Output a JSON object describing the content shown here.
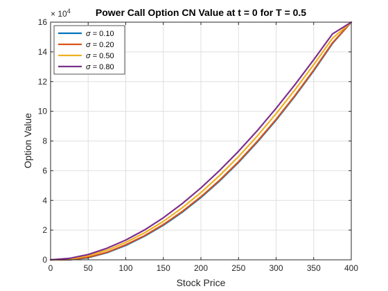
{
  "chart_data": {
    "type": "line",
    "title": "Power Call Option CN Value at t = 0 for T = 0.5",
    "xlabel": "Stock Price",
    "ylabel": "Option Value",
    "xlim": [
      0,
      400
    ],
    "ylim": [
      0,
      160000
    ],
    "xticks": [
      0,
      50,
      100,
      150,
      200,
      250,
      300,
      350,
      400
    ],
    "xtick_labels": [
      "0",
      "50",
      "100",
      "150",
      "200",
      "250",
      "300",
      "350",
      "400"
    ],
    "yticks": [
      0,
      20000,
      40000,
      60000,
      80000,
      100000,
      120000,
      140000,
      160000
    ],
    "ytick_labels": [
      "0",
      "2",
      "4",
      "6",
      "8",
      "10",
      "12",
      "14",
      "16"
    ],
    "y_multiplier_base": "× 10",
    "y_multiplier_exp": "4",
    "grid": true,
    "legend_position": "top-left",
    "x": [
      0,
      25,
      50,
      75,
      100,
      125,
      150,
      175,
      200,
      225,
      250,
      275,
      300,
      325,
      350,
      375,
      400
    ],
    "series": [
      {
        "name": "σ = 0.10",
        "symbol": "σ",
        "label": " = 0.10",
        "color": "#0072BD",
        "values": [
          0,
          0,
          1400,
          4800,
          9700,
          15900,
          23300,
          32000,
          42000,
          53200,
          65600,
          79300,
          94100,
          110100,
          127300,
          145700,
          160000
        ]
      },
      {
        "name": "σ = 0.20",
        "symbol": "σ",
        "label": " = 0.20",
        "color": "#D95319",
        "values": [
          0,
          100,
          1700,
          5100,
          10100,
          16300,
          23800,
          32500,
          42500,
          53700,
          66100,
          79800,
          94600,
          110600,
          127800,
          146100,
          160000
        ]
      },
      {
        "name": "σ = 0.50",
        "symbol": "σ",
        "label": " = 0.50",
        "color": "#EDB120",
        "values": [
          0,
          500,
          2700,
          6500,
          11700,
          18200,
          25900,
          35000,
          45300,
          56800,
          69500,
          83400,
          98400,
          114400,
          131400,
          149200,
          160000
        ]
      },
      {
        "name": "σ = 0.80",
        "symbol": "σ",
        "label": " = 0.80",
        "color": "#7E2F8E",
        "values": [
          0,
          1000,
          3600,
          7800,
          13300,
          20100,
          28300,
          37800,
          48400,
          60200,
          73100,
          87000,
          102000,
          117900,
          134700,
          152100,
          160000
        ]
      }
    ]
  }
}
